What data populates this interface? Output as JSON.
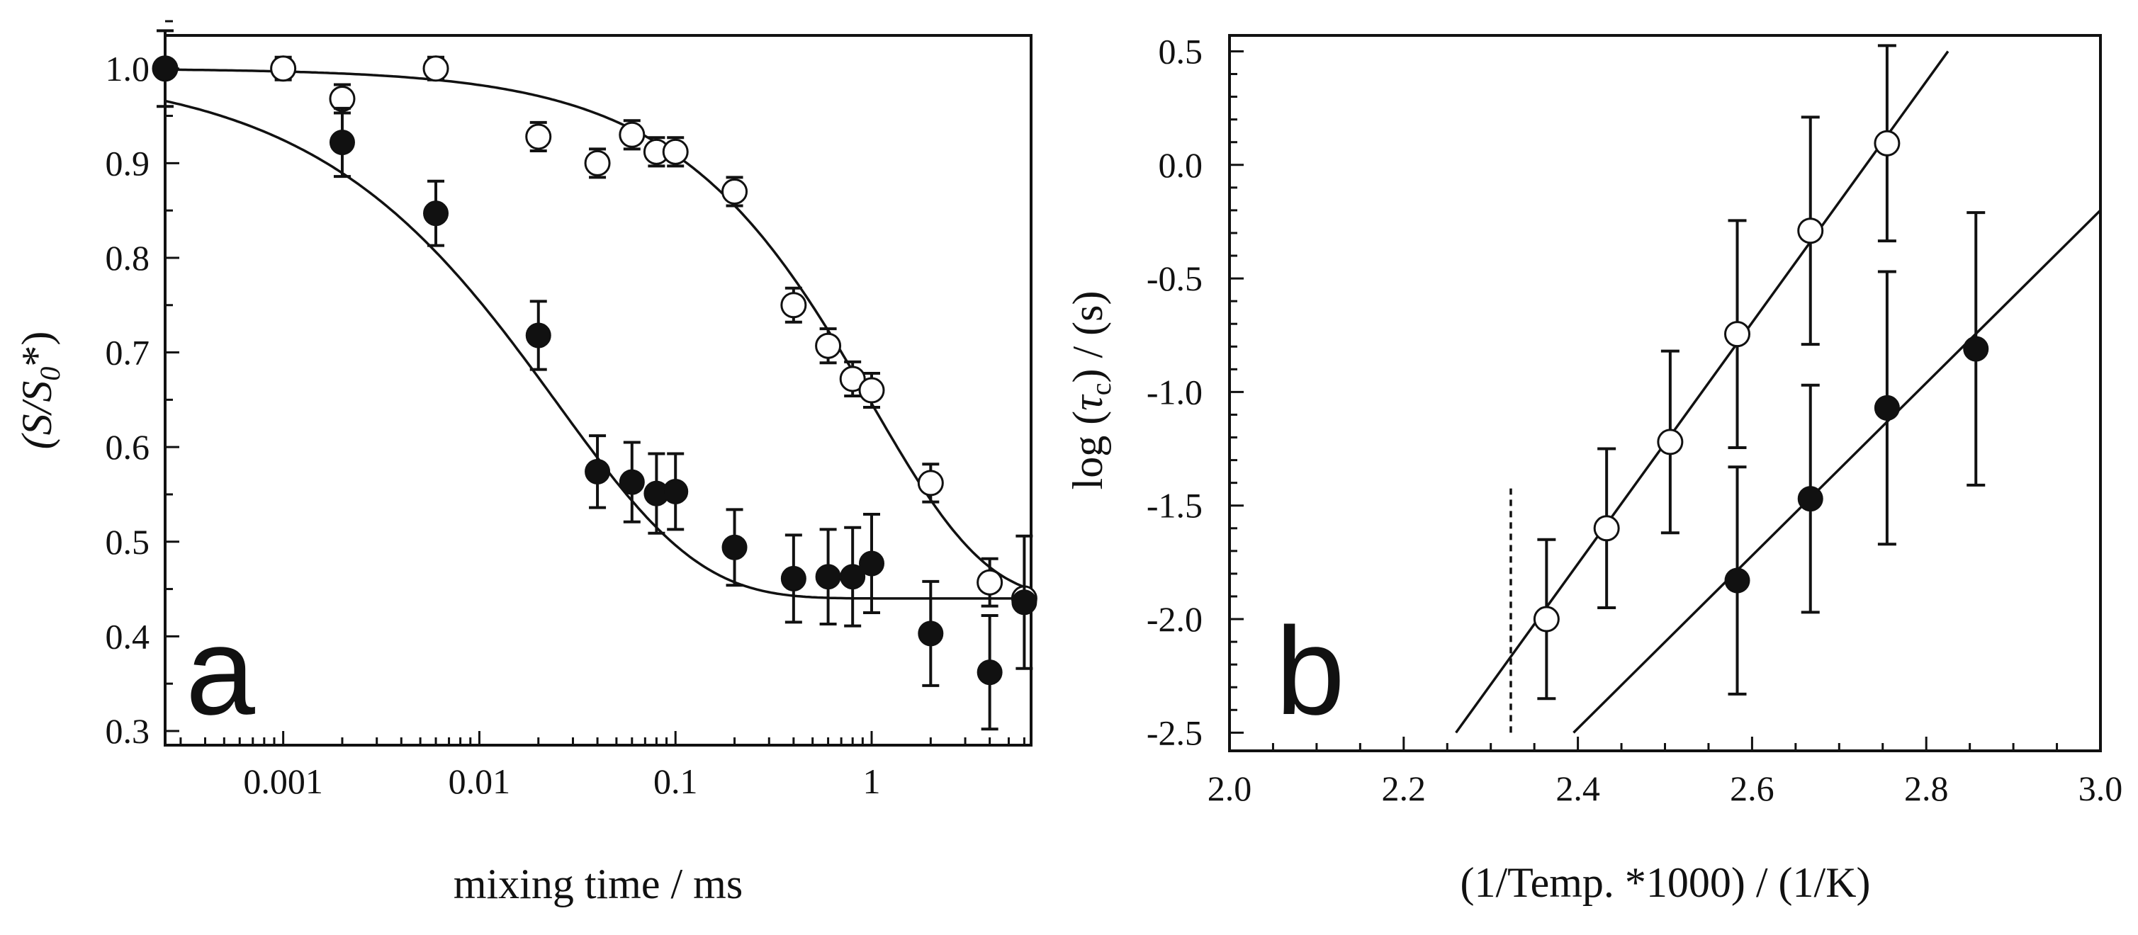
{
  "chart_data": [
    {
      "type": "scatter",
      "panel_label": "a",
      "title": "",
      "xlabel": "mixing time / ms",
      "ylabel": {
        "main": "(S/S",
        "sub": "0",
        "sup": "*)"
      },
      "xscale": "log",
      "xlim": [
        0.00025,
        6.5
      ],
      "ylim": [
        0.285,
        1.035
      ],
      "xticks": [
        {
          "value": 0.001,
          "label": "0.001"
        },
        {
          "value": 0.01,
          "label": "0.01"
        },
        {
          "value": 0.1,
          "label": "0.1"
        },
        {
          "value": 1,
          "label": "1"
        }
      ],
      "yticks": [
        {
          "value": 0.3,
          "label": "0.3"
        },
        {
          "value": 0.4,
          "label": "0.4"
        },
        {
          "value": 0.5,
          "label": "0.5"
        },
        {
          "value": 0.6,
          "label": "0.6"
        },
        {
          "value": 0.7,
          "label": "0.7"
        },
        {
          "value": 0.8,
          "label": "0.8"
        },
        {
          "value": 0.9,
          "label": "0.9"
        },
        {
          "value": 1.0,
          "label": "1.0"
        }
      ],
      "series": [
        {
          "name": "open circles",
          "marker": "open",
          "points": [
            {
              "x": 0.00025,
              "y": 1.0,
              "err": 0.0
            },
            {
              "x": 0.001,
              "y": 1.0,
              "err": 0.012
            },
            {
              "x": 0.002,
              "y": 0.968,
              "err": 0.015
            },
            {
              "x": 0.006,
              "y": 1.0,
              "err": 0.012
            },
            {
              "x": 0.02,
              "y": 0.928,
              "err": 0.015
            },
            {
              "x": 0.04,
              "y": 0.9,
              "err": 0.015
            },
            {
              "x": 0.06,
              "y": 0.93,
              "err": 0.015
            },
            {
              "x": 0.08,
              "y": 0.912,
              "err": 0.015
            },
            {
              "x": 0.1,
              "y": 0.912,
              "err": 0.015
            },
            {
              "x": 0.2,
              "y": 0.87,
              "err": 0.015
            },
            {
              "x": 0.4,
              "y": 0.75,
              "err": 0.018
            },
            {
              "x": 0.6,
              "y": 0.707,
              "err": 0.018
            },
            {
              "x": 0.8,
              "y": 0.672,
              "err": 0.018
            },
            {
              "x": 1.0,
              "y": 0.66,
              "err": 0.018
            },
            {
              "x": 2.0,
              "y": 0.562,
              "err": 0.02
            },
            {
              "x": 4.0,
              "y": 0.457,
              "err": 0.025
            },
            {
              "x": 6.0,
              "y": 0.44,
              "err": 0.0
            }
          ],
          "fit": {
            "A": 0.44,
            "B": 0.56,
            "tau": 1.0,
            "beta": 0.75
          }
        },
        {
          "name": "filled circles",
          "marker": "filled",
          "points": [
            {
              "x": 0.00025,
              "y": 1.0,
              "err": 0.04
            },
            {
              "x": 0.002,
              "y": 0.922,
              "err": 0.036
            },
            {
              "x": 0.006,
              "y": 0.847,
              "err": 0.034
            },
            {
              "x": 0.02,
              "y": 0.718,
              "err": 0.036
            },
            {
              "x": 0.04,
              "y": 0.574,
              "err": 0.038
            },
            {
              "x": 0.06,
              "y": 0.563,
              "err": 0.042
            },
            {
              "x": 0.08,
              "y": 0.551,
              "err": 0.042
            },
            {
              "x": 0.1,
              "y": 0.553,
              "err": 0.04
            },
            {
              "x": 0.2,
              "y": 0.494,
              "err": 0.04
            },
            {
              "x": 0.4,
              "y": 0.461,
              "err": 0.046
            },
            {
              "x": 0.6,
              "y": 0.463,
              "err": 0.05
            },
            {
              "x": 0.8,
              "y": 0.463,
              "err": 0.052
            },
            {
              "x": 1.0,
              "y": 0.477,
              "err": 0.052
            },
            {
              "x": 2.0,
              "y": 0.403,
              "err": 0.055
            },
            {
              "x": 4.0,
              "y": 0.362,
              "err": 0.06
            },
            {
              "x": 6.0,
              "y": 0.436,
              "err": 0.07
            }
          ],
          "fit": {
            "A": 0.44,
            "B": 0.56,
            "tau": 0.025,
            "beta": 0.6
          }
        }
      ]
    },
    {
      "type": "scatter",
      "panel_label": "b",
      "title": "",
      "xlabel": "(1/Temp. *1000) / (1/K)",
      "ylabel": {
        "main": "log (",
        "tau": "τ",
        "sub": "c",
        "rest": ") / (s)"
      },
      "xlim": [
        2.0,
        3.0
      ],
      "ylim": [
        -2.58,
        0.57
      ],
      "xticks": [
        {
          "value": 2.0,
          "label": "2.0"
        },
        {
          "value": 2.2,
          "label": "2.2"
        },
        {
          "value": 2.4,
          "label": "2.4"
        },
        {
          "value": 2.6,
          "label": "2.6"
        },
        {
          "value": 2.8,
          "label": "2.8"
        },
        {
          "value": 3.0,
          "label": "3.0"
        }
      ],
      "xminor_step": 0.05,
      "yticks": [
        {
          "value": 0.5,
          "label": "0.5"
        },
        {
          "value": 0.0,
          "label": "0.0"
        },
        {
          "value": -0.5,
          "label": "-0.5"
        },
        {
          "value": -1.0,
          "label": "-1.0"
        },
        {
          "value": -1.5,
          "label": "-1.5"
        },
        {
          "value": -2.0,
          "label": "-2.0"
        },
        {
          "value": -2.5,
          "label": "-2.5"
        }
      ],
      "yminor_step": 0.1,
      "series": [
        {
          "name": "open circles",
          "marker": "open",
          "points": [
            {
              "x": 2.364,
              "y": -2.0,
              "err": 0.35
            },
            {
              "x": 2.433,
              "y": -1.6,
              "err": 0.35
            },
            {
              "x": 2.506,
              "y": -1.22,
              "err": 0.4
            },
            {
              "x": 2.583,
              "y": -0.745,
              "err": 0.5
            },
            {
              "x": 2.667,
              "y": -0.29,
              "err": 0.5
            },
            {
              "x": 2.755,
              "y": 0.095,
              "err": 0.43
            }
          ],
          "fit": {
            "x1": 2.26,
            "y1": -2.5,
            "x2": 2.825,
            "y2": 0.5
          }
        },
        {
          "name": "filled circles",
          "marker": "filled",
          "points": [
            {
              "x": 2.583,
              "y": -1.83,
              "err": 0.5
            },
            {
              "x": 2.667,
              "y": -1.47,
              "err": 0.5
            },
            {
              "x": 2.755,
              "y": -1.07,
              "err": 0.6
            },
            {
              "x": 2.857,
              "y": -0.81,
              "err": 0.6
            }
          ],
          "fit": {
            "x1": 2.395,
            "y1": -2.5,
            "x2": 3.0,
            "y2": -0.2
          }
        }
      ],
      "reference_line": {
        "x": 2.323,
        "y_from": -2.5,
        "y_to": -1.425,
        "style": "dashed"
      }
    }
  ]
}
